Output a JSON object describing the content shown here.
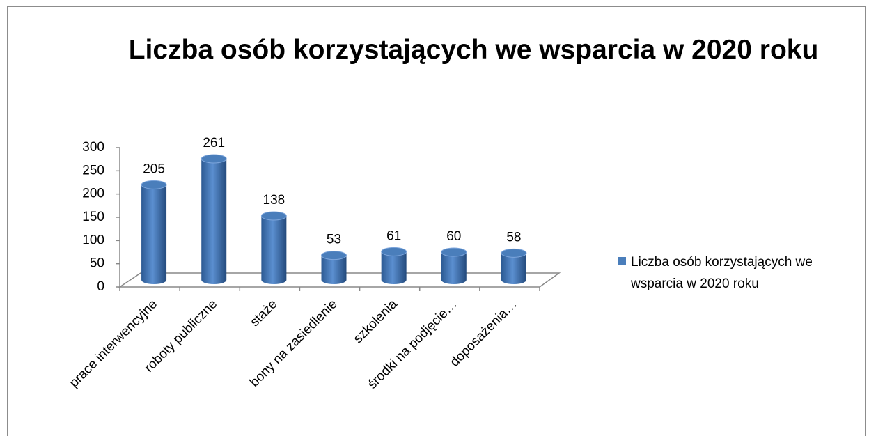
{
  "chart_data": {
    "type": "bar",
    "title": "Liczba osób korzystających we wsparcia w 2020 roku",
    "categories": [
      "prace interwencyjne",
      "roboty publiczne",
      "staże",
      "bony na zasiedlenie",
      "szkolenia",
      "środki na podjęcie…",
      "doposażenia…"
    ],
    "series": [
      {
        "name": "Liczba osób korzystających we wsparcia w 2020 roku",
        "color": "#4a7ebb",
        "values": [
          205,
          261,
          138,
          53,
          61,
          60,
          58
        ]
      }
    ],
    "ylim": [
      0,
      300
    ],
    "yticks": [
      0,
      50,
      100,
      150,
      200,
      250,
      300
    ],
    "legend": "right"
  }
}
